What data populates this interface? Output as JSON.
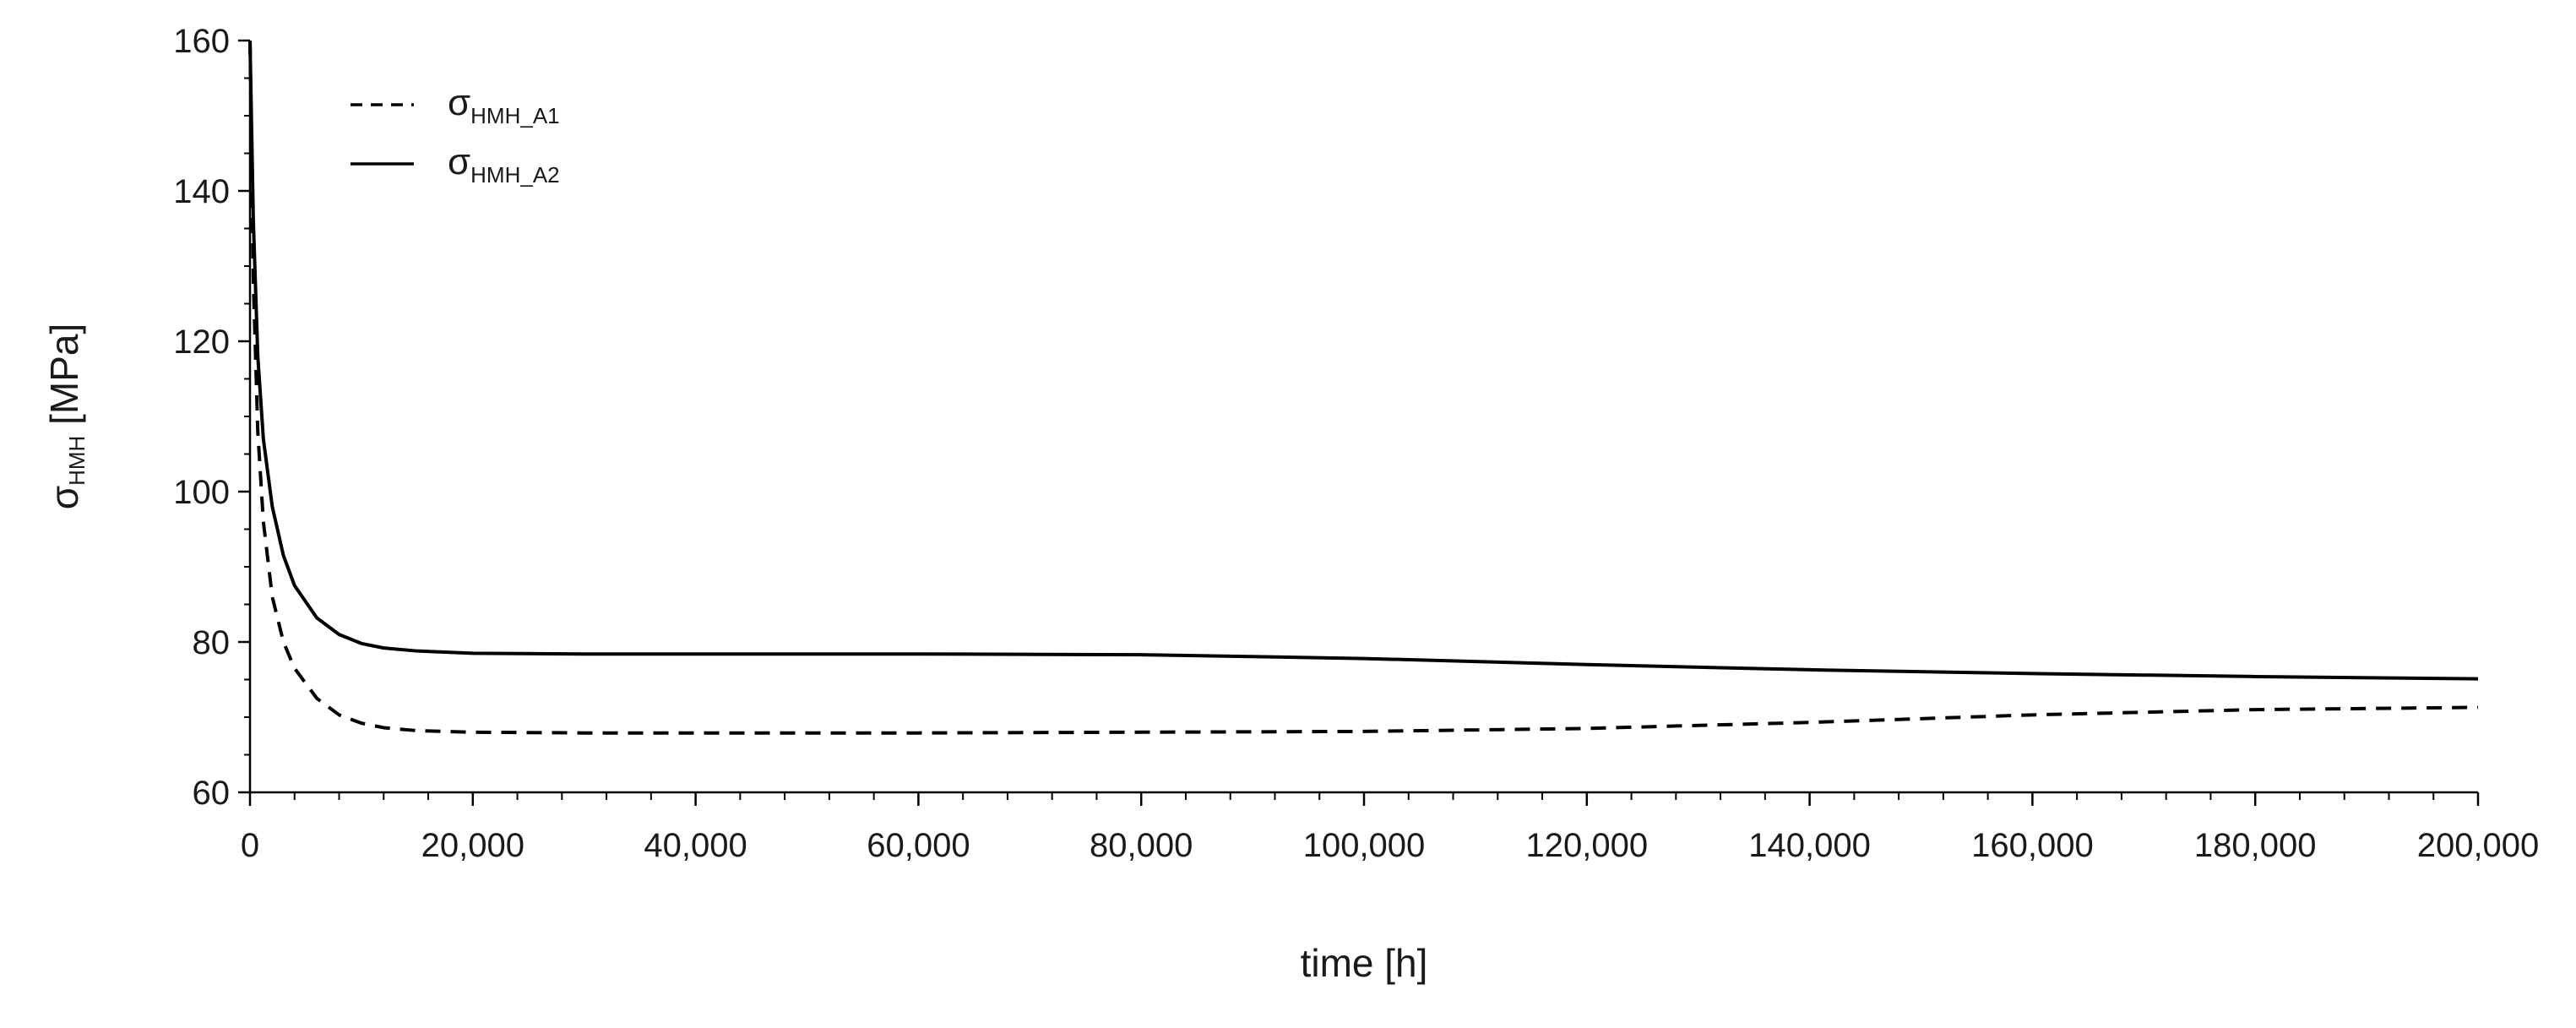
{
  "chart_data": {
    "type": "line",
    "xlabel": "time [h]",
    "ylabel": {
      "main": "σ",
      "sub": "HMH",
      "unit": " [MPa]"
    },
    "xlim": [
      0,
      200000
    ],
    "ylim": [
      60,
      160
    ],
    "xticks": [
      0,
      20000,
      40000,
      60000,
      80000,
      100000,
      120000,
      140000,
      160000,
      180000,
      200000
    ],
    "xtick_labels": [
      "0",
      "20,000",
      "40,000",
      "60,000",
      "80,000",
      "100,000",
      "120,000",
      "140,000",
      "160,000",
      "180,000",
      "200,000"
    ],
    "yticks": [
      60,
      80,
      100,
      120,
      140,
      160
    ],
    "ytick_labels": [
      "60",
      "80",
      "100",
      "120",
      "140",
      "160"
    ],
    "grid": false,
    "legend_position": "top-left",
    "series": [
      {
        "name": "σHMH_A1",
        "name_main": "σ",
        "name_sub": "HMH_A1",
        "style": "dashed",
        "color": "#000000",
        "points": [
          [
            0,
            160
          ],
          [
            300,
            128
          ],
          [
            700,
            108
          ],
          [
            1200,
            96
          ],
          [
            2000,
            86
          ],
          [
            3000,
            80
          ],
          [
            4000,
            76.5
          ],
          [
            6000,
            72.5
          ],
          [
            8000,
            70.3
          ],
          [
            10000,
            69.2
          ],
          [
            12000,
            68.6
          ],
          [
            15000,
            68.2
          ],
          [
            20000,
            68.0
          ],
          [
            30000,
            67.9
          ],
          [
            40000,
            67.9
          ],
          [
            60000,
            67.9
          ],
          [
            80000,
            68.0
          ],
          [
            100000,
            68.1
          ],
          [
            120000,
            68.5
          ],
          [
            140000,
            69.3
          ],
          [
            160000,
            70.3
          ],
          [
            180000,
            71.0
          ],
          [
            200000,
            71.3
          ]
        ]
      },
      {
        "name": "σHMH_A2",
        "name_main": "σ",
        "name_sub": "HMH_A2",
        "style": "solid",
        "color": "#000000",
        "points": [
          [
            0,
            160
          ],
          [
            300,
            136
          ],
          [
            700,
            118
          ],
          [
            1200,
            107
          ],
          [
            2000,
            98
          ],
          [
            3000,
            91.5
          ],
          [
            4000,
            87.5
          ],
          [
            6000,
            83.2
          ],
          [
            8000,
            81
          ],
          [
            10000,
            79.8
          ],
          [
            12000,
            79.2
          ],
          [
            15000,
            78.8
          ],
          [
            20000,
            78.5
          ],
          [
            30000,
            78.4
          ],
          [
            40000,
            78.4
          ],
          [
            60000,
            78.4
          ],
          [
            80000,
            78.3
          ],
          [
            100000,
            77.8
          ],
          [
            120000,
            77.0
          ],
          [
            140000,
            76.3
          ],
          [
            160000,
            75.8
          ],
          [
            180000,
            75.4
          ],
          [
            200000,
            75.1
          ]
        ]
      }
    ]
  }
}
